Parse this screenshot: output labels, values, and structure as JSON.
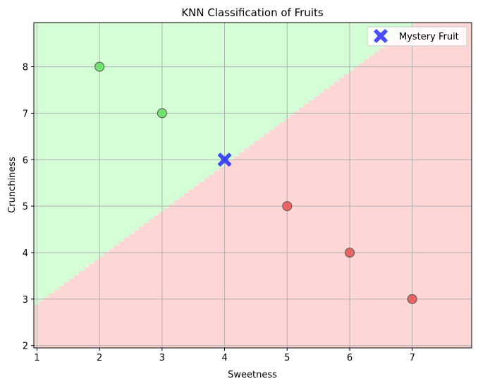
{
  "chart_data": {
    "type": "scatter",
    "title": "KNN Classification of Fruits",
    "xlabel": "Sweetness",
    "ylabel": "Crunchiness",
    "xlim": [
      0.95,
      7.95
    ],
    "ylim": [
      1.95,
      8.95
    ],
    "xticks": [
      1,
      2,
      3,
      4,
      5,
      6,
      7
    ],
    "yticks": [
      2,
      3,
      4,
      5,
      6,
      7,
      8
    ],
    "grid": true,
    "legend_position": "top-right",
    "decision_regions": {
      "boundary": "y = x + 2 (approx.)",
      "above_color": "#d4ffd6",
      "below_color": "#ffd6d6"
    },
    "series": [
      {
        "color": "#66e066",
        "points": [
          {
            "x": 2,
            "y": 8
          },
          {
            "x": 3,
            "y": 7
          }
        ]
      },
      {
        "color": "#e85a5a",
        "points": [
          {
            "x": 5,
            "y": 5
          },
          {
            "x": 6,
            "y": 4
          },
          {
            "x": 7,
            "y": 3
          }
        ]
      },
      {
        "name": "Mystery Fruit",
        "marker": "X",
        "color": "#0000ff",
        "points": [
          {
            "x": 4,
            "y": 6
          }
        ]
      }
    ]
  }
}
